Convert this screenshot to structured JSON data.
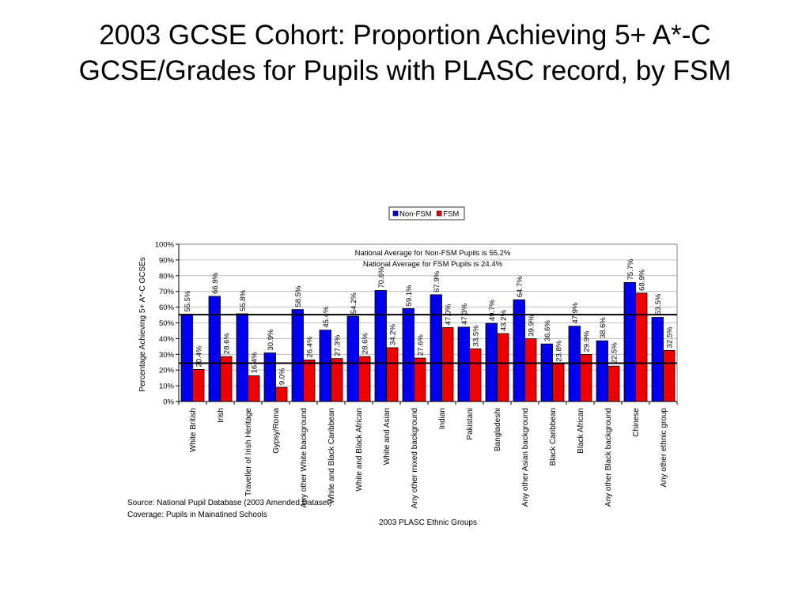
{
  "slide": {
    "title": "2003 GCSE Cohort: Proportion Achieving 5+ A*-C GCSE/Grades for Pupils with PLASC record, by FSM",
    "source": "Source: National Pupil Database (2003 Amended Dataset)",
    "coverage": "Coverage: Pupils in Mainatined Schools"
  },
  "chart_data": {
    "type": "bar",
    "title": "",
    "xlabel": "2003 PLASC Ethnic Groups",
    "ylabel": "Percentage Achieving 5+ A*-C GCSEs",
    "ylim": [
      0,
      100
    ],
    "yticks": [
      "0%",
      "10%",
      "20%",
      "30%",
      "40%",
      "50%",
      "60%",
      "70%",
      "80%",
      "90%",
      "100%"
    ],
    "legend_position": "top",
    "categories": [
      "White British",
      "Irish",
      "Traveller of Irish Heritage",
      "Gypsy/Roma",
      "Any other White background",
      "White and Black Caribbean",
      "White and Black African",
      "White and Asian",
      "Any other mixed background",
      "Indian",
      "Pakistani",
      "Bangladeshi",
      "Any other Asian background",
      "Black Caribbean",
      "Black African",
      "Any other Black background",
      "Chinese",
      "Any other ethnic group"
    ],
    "series": [
      {
        "name": "Non-FSM",
        "color": "#0000ee",
        "values": [
          55.5,
          66.9,
          55.8,
          30.9,
          58.5,
          45.4,
          54.2,
          70.6,
          59.1,
          67.9,
          47.3,
          49.7,
          64.7,
          36.6,
          47.9,
          38.6,
          75.7,
          53.5
        ],
        "labels": [
          "55.5%",
          "66.9%",
          "55.8%",
          "30.9%",
          "58.5%",
          "45.4%",
          "54.2%",
          "70.6%",
          "59.1%",
          "67.9%",
          "47.3%",
          "49.7%",
          "64.7%",
          "36.6%",
          "47.9%",
          "38.6%",
          "75.7%",
          "53.5%"
        ]
      },
      {
        "name": "FSM",
        "color": "#ee0000",
        "values": [
          20.4,
          28.6,
          16.4,
          9.0,
          26.4,
          27.3,
          28.6,
          34.2,
          27.6,
          47.0,
          33.5,
          43.2,
          39.9,
          23.8,
          29.9,
          22.5,
          68.9,
          32.5
        ],
        "labels": [
          "20.4%",
          "28.6%",
          "16.4%",
          "9.0%",
          "26.4%",
          "27.3%",
          "28.6%",
          "34.2%",
          "27.6%",
          "47.0%",
          "33.5%",
          "43.2%",
          "39.9%",
          "23.8%",
          "29.9%",
          "22.5%",
          "68.9%",
          "32.5%"
        ]
      }
    ],
    "reference_lines": [
      {
        "value": 55.2,
        "label": "National Average for Non-FSM Pupils is 55.2%"
      },
      {
        "value": 24.4,
        "label": "National Average for FSM Pupils is 24.4%"
      }
    ]
  }
}
